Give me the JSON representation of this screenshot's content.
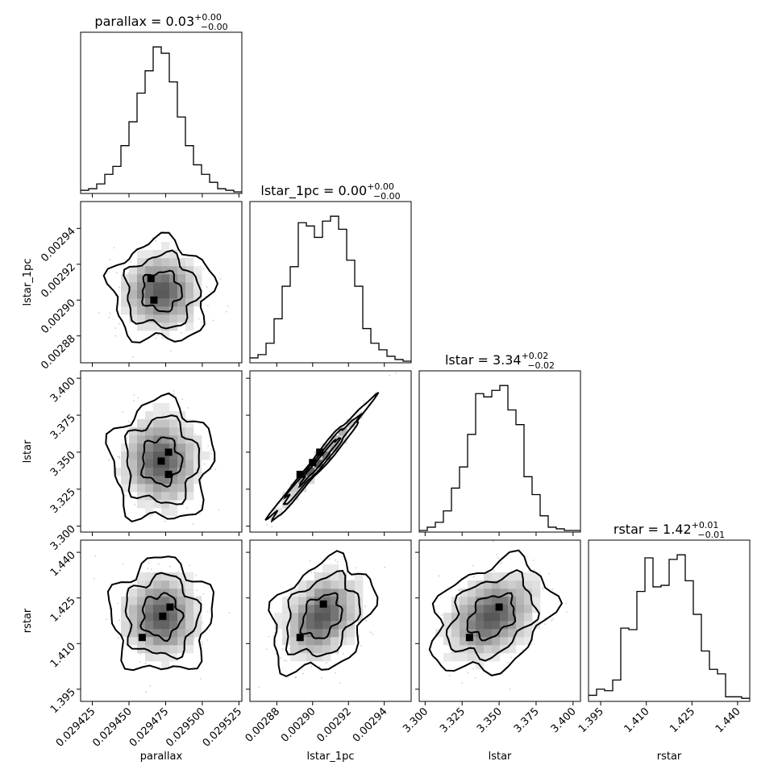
{
  "figure": {
    "type": "corner-plot",
    "parameters": [
      "parallax",
      "lstar_1pc",
      "lstar",
      "rstar"
    ]
  },
  "titles": {
    "parallax": {
      "name": "parallax",
      "value": "0.03",
      "plus": "+0.00",
      "minus": "−0.00"
    },
    "lstar_1pc": {
      "name": "lstar_1pc",
      "value": "0.00",
      "plus": "+0.00",
      "minus": "−0.00"
    },
    "lstar": {
      "name": "lstar",
      "value": "3.34",
      "plus": "+0.02",
      "minus": "−0.02"
    },
    "rstar": {
      "name": "rstar",
      "value": "1.42",
      "plus": "+0.01",
      "minus": "−0.01"
    }
  },
  "axis_labels": {
    "x": [
      "parallax",
      "lstar_1pc",
      "lstar",
      "rstar"
    ],
    "y": [
      "lstar_1pc",
      "lstar",
      "rstar"
    ]
  },
  "chart_data": [
    {
      "type": "histogram",
      "id": "hist-parallax",
      "param": "parallax",
      "xlim": [
        0.029417,
        0.029527
      ],
      "bin_edges": [
        0.029417,
        0.0294225,
        0.029428,
        0.0294335,
        0.029439,
        0.0294445,
        0.02945,
        0.0294555,
        0.029461,
        0.0294665,
        0.029472,
        0.0294775,
        0.029483,
        0.0294885,
        0.029494,
        0.0294995,
        0.029505,
        0.0295105,
        0.029516,
        0.0295215,
        0.029527
      ],
      "counts": [
        2,
        3,
        6,
        12,
        17,
        30,
        45,
        63,
        77,
        92,
        88,
        70,
        48,
        30,
        18,
        12,
        7,
        3,
        2,
        1
      ],
      "ticks": [
        "0.029425",
        "0.029450",
        "0.029475",
        "0.029500",
        "0.029525"
      ],
      "tick_values": [
        0.029425,
        0.02945,
        0.029475,
        0.0295,
        0.029525
      ]
    },
    {
      "type": "histogram",
      "id": "hist-lstar_1pc",
      "param": "lstar_1pc",
      "xlim": [
        0.002865,
        0.002955
      ],
      "bin_edges": [
        0.002865,
        0.0028695,
        0.002874,
        0.0028785,
        0.002883,
        0.0028875,
        0.002892,
        0.0028965,
        0.002901,
        0.0029055,
        0.00291,
        0.0029145,
        0.002919,
        0.0029235,
        0.002928,
        0.0029325,
        0.002937,
        0.0029415,
        0.002946,
        0.0029505,
        0.002955
      ],
      "counts": [
        3,
        5,
        12,
        27,
        47,
        59,
        86,
        84,
        77,
        87,
        90,
        82,
        63,
        47,
        21,
        12,
        8,
        4,
        2,
        1
      ],
      "ticks": [
        "0.00288",
        "0.00290",
        "0.00292",
        "0.00294"
      ],
      "tick_values": [
        0.00288,
        0.0029,
        0.00292,
        0.00294
      ]
    },
    {
      "type": "histogram",
      "id": "hist-lstar",
      "param": "lstar",
      "xlim": [
        3.296,
        3.405
      ],
      "bin_edges": [
        3.296,
        3.30145,
        3.3069,
        3.31235,
        3.3178,
        3.32325,
        3.3287,
        3.33415,
        3.3396,
        3.34505,
        3.3505,
        3.35595,
        3.3614,
        3.36685,
        3.3723,
        3.37775,
        3.3832,
        3.38865,
        3.3941,
        3.39955,
        3.405
      ],
      "counts": [
        1,
        3,
        6,
        13,
        27,
        40,
        60,
        85,
        83,
        87,
        90,
        75,
        66,
        34,
        23,
        10,
        3,
        2,
        1,
        1
      ],
      "ticks": [
        "3.300",
        "3.325",
        "3.350",
        "3.375",
        "3.400"
      ],
      "tick_values": [
        3.3,
        3.325,
        3.35,
        3.375,
        3.4
      ]
    },
    {
      "type": "histogram",
      "id": "hist-rstar",
      "param": "rstar",
      "xlim": [
        1.391,
        1.444
      ],
      "bin_edges": [
        1.391,
        1.39365,
        1.3963,
        1.39895,
        1.4016,
        1.40425,
        1.4069,
        1.40955,
        1.4122,
        1.41485,
        1.4175,
        1.42015,
        1.4228,
        1.42545,
        1.4281,
        1.43075,
        1.4334,
        1.43605,
        1.4387,
        1.44135,
        1.444
      ],
      "counts": [
        4,
        8,
        7,
        14,
        48,
        47,
        72,
        94,
        75,
        76,
        93,
        96,
        79,
        57,
        33,
        21,
        18,
        3,
        3,
        2
      ],
      "ticks": [
        "1.395",
        "1.410",
        "1.425",
        "1.440"
      ],
      "tick_values": [
        1.395,
        1.41,
        1.425,
        1.44
      ]
    },
    {
      "type": "heatmap",
      "id": "2d-parallax-lstar_1pc",
      "x": "parallax",
      "y": "lstar_1pc",
      "xlim": [
        0.029417,
        0.029527
      ],
      "ylim": [
        0.002865,
        0.002955
      ],
      "yticks": [
        "0.00288",
        "0.00290",
        "0.00292",
        "0.00294"
      ],
      "ytick_values": [
        0.00288,
        0.0029,
        0.00292,
        0.00294
      ],
      "center": [
        0.029472,
        0.002905
      ],
      "sigma": [
        1.4e-05,
        1.15e-05
      ],
      "rho": 0.0,
      "peaks": [
        [
          0.029467,
          0.0029
        ],
        [
          0.029465,
          0.002912
        ]
      ]
    },
    {
      "type": "heatmap",
      "id": "2d-parallax-lstar",
      "x": "parallax",
      "y": "lstar",
      "xlim": [
        0.029417,
        0.029527
      ],
      "ylim": [
        3.296,
        3.405
      ],
      "yticks": [
        "3.300",
        "3.325",
        "3.350",
        "3.375",
        "3.400"
      ],
      "ytick_values": [
        3.3,
        3.325,
        3.35,
        3.375,
        3.4
      ],
      "center": [
        0.029472,
        3.344
      ],
      "sigma": [
        1.4e-05,
        0.0165
      ],
      "rho": 0.0,
      "peaks": [
        [
          0.029472,
          3.344
        ],
        [
          0.029477,
          3.335
        ],
        [
          0.029477,
          3.35
        ]
      ]
    },
    {
      "type": "heatmap",
      "id": "2d-parallax-rstar",
      "x": "parallax",
      "y": "rstar",
      "xlim": [
        0.029417,
        0.029527
      ],
      "ylim": [
        1.391,
        1.444
      ],
      "yticks": [
        "1.395",
        "1.410",
        "1.425",
        "1.440"
      ],
      "ytick_values": [
        1.395,
        1.41,
        1.425,
        1.44
      ],
      "center": [
        0.029472,
        1.419
      ],
      "sigma": [
        1.4e-05,
        0.0075
      ],
      "rho": 0.0,
      "peaks": [
        [
          0.029473,
          1.419
        ],
        [
          0.029478,
          1.422
        ],
        [
          0.029459,
          1.412
        ]
      ]
    },
    {
      "type": "heatmap",
      "id": "2d-lstar_1pc-lstar",
      "x": "lstar_1pc",
      "y": "lstar",
      "xlim": [
        0.002865,
        0.002955
      ],
      "ylim": [
        3.296,
        3.405
      ],
      "center": [
        0.002904,
        3.344
      ],
      "sigma": [
        1.15e-05,
        0.0165
      ],
      "rho": 0.985,
      "peaks": [
        [
          0.002893,
          3.335
        ],
        [
          0.0029,
          3.343
        ],
        [
          0.002904,
          3.35
        ]
      ]
    },
    {
      "type": "heatmap",
      "id": "2d-lstar_1pc-rstar",
      "x": "lstar_1pc",
      "y": "rstar",
      "xlim": [
        0.002865,
        0.002955
      ],
      "ylim": [
        1.391,
        1.444
      ],
      "center": [
        0.002905,
        1.419
      ],
      "sigma": [
        1.15e-05,
        0.0075
      ],
      "rho": 0.3,
      "peaks": [
        [
          0.002893,
          1.412
        ],
        [
          0.002906,
          1.423
        ]
      ]
    },
    {
      "type": "heatmap",
      "id": "2d-lstar-rstar",
      "x": "lstar",
      "y": "rstar",
      "xlim": [
        3.296,
        3.405
      ],
      "ylim": [
        1.391,
        1.444
      ],
      "center": [
        3.345,
        1.419
      ],
      "sigma": [
        0.0165,
        0.0075
      ],
      "rho": 0.32,
      "peaks": [
        [
          3.35,
          1.422
        ],
        [
          3.33,
          1.412
        ]
      ]
    }
  ]
}
